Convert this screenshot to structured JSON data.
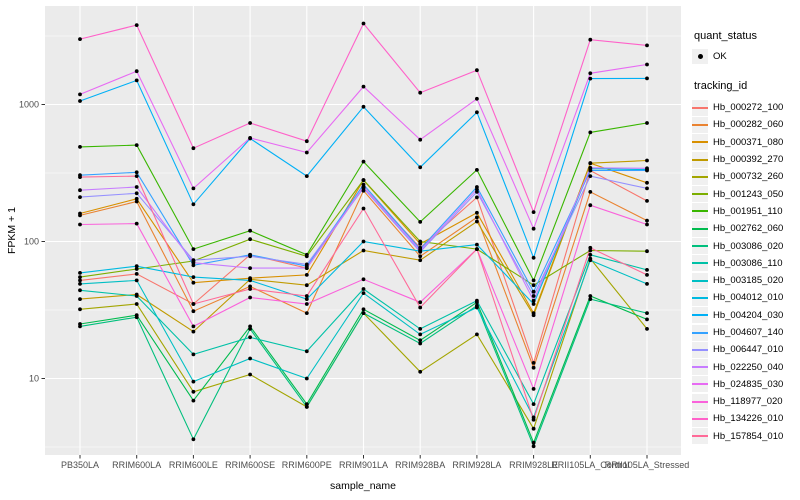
{
  "figure": {
    "background": "#FFFFFF",
    "panel_background": "#EBEBEB",
    "gridline_color": "#FFFFFF",
    "axis_text_color": "#4D4D4D",
    "axis_title_color": "#000000",
    "point_color": "#000000"
  },
  "axes": {
    "x_title": "sample_name",
    "y_title": "FPKM + 1",
    "y_tick_labels": [
      "10",
      "100",
      "1000"
    ]
  },
  "legend": {
    "quant_status": {
      "title": "quant_status",
      "items": [
        {
          "label": "OK",
          "icon": "black-point-icon"
        }
      ]
    },
    "tracking_id": {
      "title": "tracking_id"
    }
  },
  "chart_data": {
    "type": "line",
    "title": "",
    "xlabel": "sample_name",
    "ylabel": "FPKM + 1",
    "y_scale": "log10",
    "ylim": [
      3,
      4000
    ],
    "y_major_ticks": [
      10,
      100,
      1000
    ],
    "y_minor_gridlines": [
      3.162,
      31.62,
      316.2,
      3162
    ],
    "grid": true,
    "legend_position": "right",
    "point_style": "black filled circle (quant_status = OK)",
    "categories": [
      "PB350LA",
      "RRIM600LA",
      "RRIM600LE",
      "RRIM600SE",
      "RRIM600PE",
      "RRIM901LA",
      "RRIM928BA",
      "RRIM928LA",
      "RRIM928LE",
      "RRII105LA_Control",
      "RRII105LA_Stressed"
    ],
    "series": [
      {
        "name": "Hb_000272_100",
        "color": "#F8766D",
        "values": [
          52,
          58,
          35,
          80,
          64,
          250,
          90,
          210,
          13,
          330,
          198
        ]
      },
      {
        "name": "Hb_000282_060",
        "color": "#EA8331",
        "values": [
          155,
          196,
          31,
          47,
          30,
          235,
          78,
          150,
          12,
          230,
          142
        ]
      },
      {
        "name": "Hb_000371_080",
        "color": "#D89000",
        "values": [
          160,
          205,
          50,
          54,
          57,
          280,
          96,
          162,
          30,
          373,
          268
        ]
      },
      {
        "name": "Hb_000392_270",
        "color": "#C09B00",
        "values": [
          38,
          41,
          22,
          53,
          48,
          86,
          73,
          140,
          29,
          373,
          390
        ]
      },
      {
        "name": "Hb_000732_260",
        "color": "#A3A500",
        "values": [
          32,
          35,
          8,
          10.7,
          6.2,
          30,
          11.2,
          21,
          4.3,
          75,
          23
        ]
      },
      {
        "name": "Hb_001243_050",
        "color": "#7CAE00",
        "values": [
          55,
          63,
          72,
          104,
          78,
          281,
          100,
          88,
          48,
          86,
          85
        ]
      },
      {
        "name": "Hb_001951_110",
        "color": "#39B600",
        "values": [
          490,
          505,
          88,
          120,
          80,
          383,
          139,
          333,
          52,
          626,
          733
        ]
      },
      {
        "name": "Hb_002762_060",
        "color": "#00BB4E",
        "values": [
          25,
          29,
          6.9,
          24,
          6.5,
          32,
          19,
          36,
          3.4,
          40,
          27
        ]
      },
      {
        "name": "Hb_003086_020",
        "color": "#00BF7D",
        "values": [
          24,
          28,
          3.6,
          23,
          6.2,
          30,
          18,
          34,
          3.2,
          38,
          30
        ]
      },
      {
        "name": "Hb_003086_110",
        "color": "#00C1A7",
        "values": [
          44,
          40,
          15,
          20,
          15.8,
          45,
          23,
          37,
          6.5,
          80,
          62
        ]
      },
      {
        "name": "Hb_003185_020",
        "color": "#00BFC4",
        "values": [
          49,
          52,
          9.5,
          14,
          10,
          42,
          21,
          33,
          5.2,
          73,
          49
        ]
      },
      {
        "name": "Hb_004012_010",
        "color": "#00BAE0",
        "values": [
          59,
          66,
          55,
          52,
          38,
          100,
          85,
          95,
          35,
          340,
          335
        ]
      },
      {
        "name": "Hb_004204_030",
        "color": "#00B0F6",
        "values": [
          1060,
          1500,
          187,
          565,
          300,
          962,
          348,
          877,
          76,
          1546,
          1550
        ]
      },
      {
        "name": "Hb_004607_140",
        "color": "#35A2FF",
        "values": [
          305,
          320,
          67,
          80,
          66,
          260,
          88,
          250,
          43,
          330,
          330
        ]
      },
      {
        "name": "Hb_006447_010",
        "color": "#9590FF",
        "values": [
          211,
          225,
          73,
          78,
          68,
          245,
          84,
          230,
          40,
          300,
          244
        ]
      },
      {
        "name": "Hb_022250_040",
        "color": "#C77CFF",
        "values": [
          237,
          250,
          70,
          64,
          64,
          250,
          86,
          240,
          37,
          345,
          342
        ]
      },
      {
        "name": "Hb_024835_030",
        "color": "#E76BF3",
        "values": [
          1185,
          1750,
          244,
          570,
          446,
          1350,
          553,
          1100,
          124,
          1690,
          1960
        ]
      },
      {
        "name": "Hb_118977_020",
        "color": "#FA62DB",
        "values": [
          133,
          135,
          24,
          39,
          35,
          53,
          36,
          88,
          8.4,
          184,
          133
        ]
      },
      {
        "name": "Hb_134226_010",
        "color": "#FF61C9",
        "values": [
          3000,
          3800,
          480,
          733,
          540,
          3900,
          1220,
          1780,
          164,
          2970,
          2700
        ]
      },
      {
        "name": "Hb_157854_010",
        "color": "#FF6A98",
        "values": [
          295,
          300,
          35,
          45,
          40,
          174,
          33,
          88,
          5,
          90,
          57
        ]
      }
    ]
  }
}
